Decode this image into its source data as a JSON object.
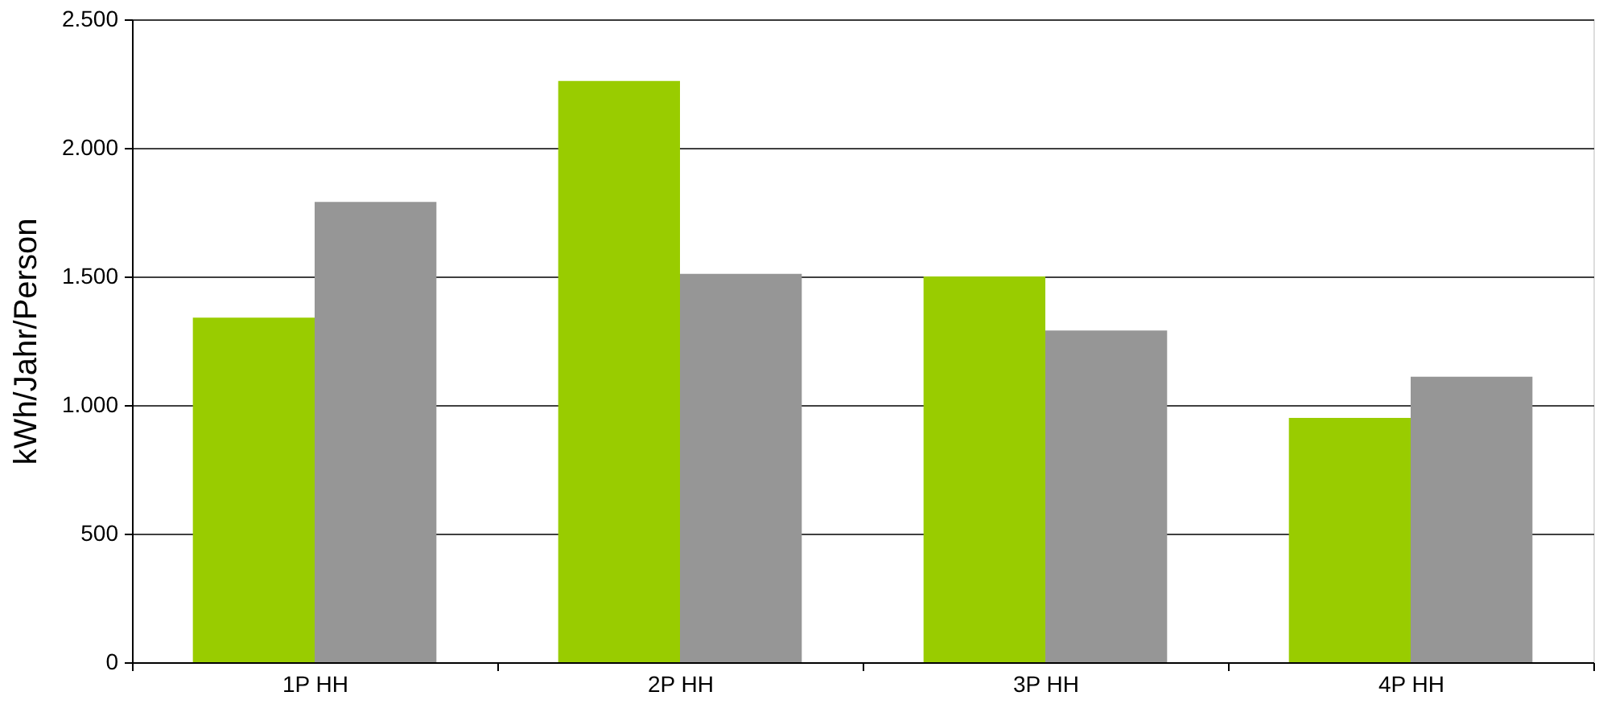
{
  "chart_data": {
    "type": "bar",
    "ylabel": "kWh/Jahr/Person",
    "categories": [
      "1P HH",
      "2P HH",
      "3P HH",
      "4P HH"
    ],
    "series": [
      {
        "color": "#99cc00",
        "values": [
          1340,
          2260,
          1500,
          950
        ]
      },
      {
        "color": "#969696",
        "values": [
          1790,
          1510,
          1290,
          1110
        ]
      }
    ],
    "ylim": [
      0,
      2500
    ],
    "yticks": [
      {
        "value": 0,
        "label": "0"
      },
      {
        "value": 500,
        "label": "500"
      },
      {
        "value": 1000,
        "label": "1.000"
      },
      {
        "value": 1500,
        "label": "1.500"
      },
      {
        "value": 2000,
        "label": "2.000"
      },
      {
        "value": 2500,
        "label": "2.500"
      }
    ],
    "grid": "y"
  }
}
